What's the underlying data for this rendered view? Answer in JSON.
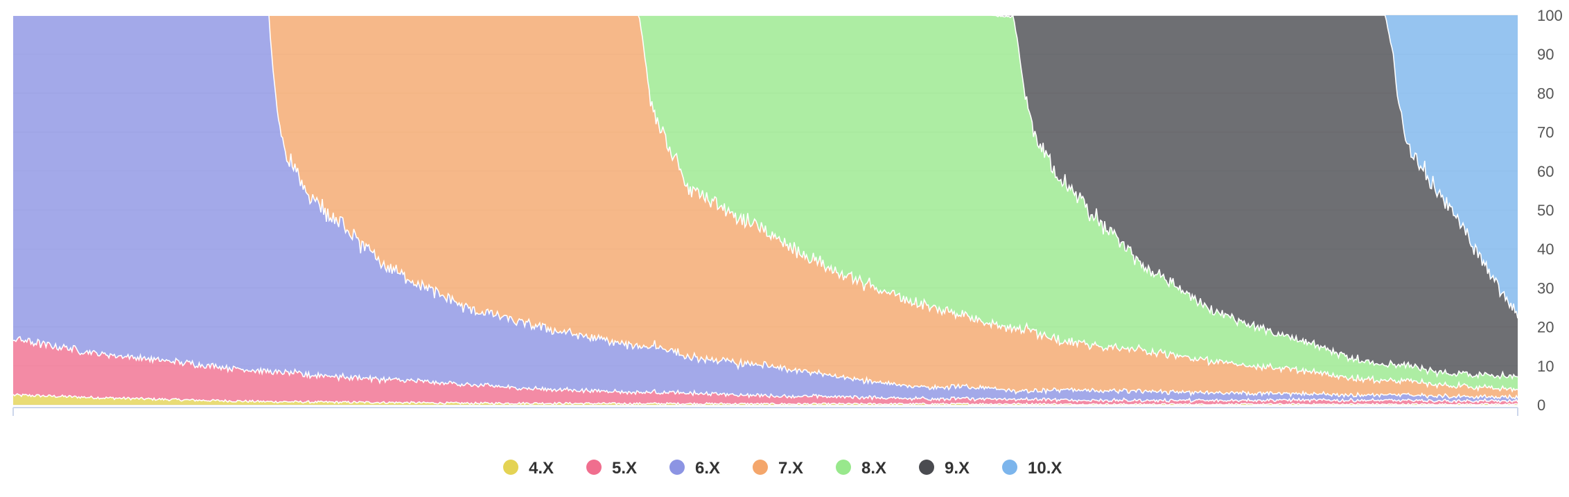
{
  "chart_data": {
    "type": "area",
    "stacked": true,
    "normalized_percent": true,
    "grid": true,
    "legend_position": "bottom-center",
    "y_axis_position": "right",
    "ylim": [
      0,
      100
    ],
    "y_ticks": [
      0,
      10,
      20,
      30,
      40,
      50,
      60,
      70,
      80,
      90,
      100
    ],
    "x_range": [
      0,
      100
    ],
    "anchors_x": [
      0,
      2,
      6,
      12,
      17,
      17.2,
      17.6,
      18,
      20,
      25,
      30,
      35,
      40,
      41.6,
      42,
      42.4,
      43,
      45,
      50,
      55,
      60,
      65,
      66.5,
      66.9,
      67.3,
      68,
      70,
      75,
      80,
      85,
      90,
      91.2,
      91.7,
      92,
      92.6,
      95,
      100
    ],
    "series": [
      {
        "name": "4.X",
        "color": "#e4d354",
        "values": [
          2.5,
          2.3,
          1.8,
          1.2,
          0.8,
          0.8,
          0.8,
          0.8,
          0.7,
          0.6,
          0.4,
          0.4,
          0.3,
          0.3,
          0.3,
          0.3,
          0.3,
          0.3,
          0.2,
          0.2,
          0.2,
          0.2,
          0.2,
          0.2,
          0.2,
          0.2,
          0.1,
          0.1,
          0.1,
          0.1,
          0.1,
          0.1,
          0.1,
          0.1,
          0.1,
          0.1,
          0.1
        ]
      },
      {
        "name": "5.X",
        "color": "#f06e8e",
        "values": [
          14.5,
          13.2,
          11.2,
          9.3,
          7.7,
          7.6,
          7.6,
          7.5,
          6.9,
          5.9,
          4.8,
          3.7,
          3.1,
          2.9,
          2.9,
          2.9,
          2.9,
          2.7,
          2.1,
          1.8,
          1.4,
          1.3,
          1.2,
          1.2,
          1.2,
          1.2,
          1.1,
          1.0,
          1.0,
          1.1,
          1.0,
          1.0,
          1.0,
          1.0,
          1.0,
          0.9,
          0.8
        ]
      },
      {
        "name": "6.X",
        "color": "#8c94e3",
        "values": [
          83.0,
          84.5,
          87.0,
          89.5,
          91.5,
          80.0,
          66.0,
          56.5,
          44.3,
          28.5,
          19.8,
          15.9,
          12.6,
          11.8,
          11.8,
          11.8,
          11.8,
          9.0,
          7.7,
          5.0,
          3.1,
          2.8,
          2.2,
          2.2,
          2.2,
          2.2,
          2.6,
          2.4,
          2.0,
          1.6,
          1.4,
          1.4,
          1.4,
          1.4,
          1.4,
          1.2,
          0.9
        ]
      },
      {
        "name": "7.X",
        "color": "#f4a66b",
        "values": [
          0,
          0,
          0,
          0,
          0,
          11.6,
          25.6,
          35.2,
          48.1,
          65.0,
          75.0,
          80.0,
          84.0,
          85.0,
          74.0,
          62.0,
          56.0,
          43.0,
          34.0,
          26.5,
          21.5,
          16.7,
          16.0,
          16.0,
          16.0,
          15.4,
          12.2,
          10.5,
          7.9,
          6.2,
          4.0,
          3.7,
          3.7,
          3.7,
          3.7,
          2.8,
          2.0
        ]
      },
      {
        "name": "8.X",
        "color": "#98e88c",
        "values": [
          0,
          0,
          0,
          0,
          0,
          0,
          0,
          0,
          0,
          0,
          0,
          0,
          0,
          0,
          11.0,
          23.0,
          29.0,
          45.0,
          56.0,
          66.5,
          73.8,
          79.0,
          80.0,
          70.0,
          59.0,
          49.0,
          40.0,
          22.0,
          12.6,
          8.0,
          4.5,
          4.0,
          4.0,
          4.0,
          4.0,
          3.2,
          3.2
        ]
      },
      {
        "name": "9.X",
        "color": "#4a4b50",
        "values": [
          0,
          0,
          0,
          0,
          0,
          0,
          0,
          0,
          0,
          0,
          0,
          0,
          0,
          0,
          0,
          0,
          0,
          0,
          0,
          0,
          0,
          0,
          0.4,
          10.4,
          21.4,
          32.0,
          44.0,
          64.0,
          76.4,
          83.0,
          89.0,
          89.8,
          80.0,
          70.0,
          57.0,
          45.0,
          15.5
        ]
      },
      {
        "name": "10.X",
        "color": "#7cb5ec",
        "values": [
          0,
          0,
          0,
          0,
          0,
          0,
          0,
          0,
          0,
          0,
          0,
          0,
          0,
          0,
          0,
          0,
          0,
          0,
          0,
          0,
          0,
          0,
          0,
          0,
          0,
          0,
          0,
          0,
          0,
          0,
          0,
          0,
          9.8,
          19.8,
          32.8,
          46.8,
          77.5
        ]
      }
    ]
  }
}
